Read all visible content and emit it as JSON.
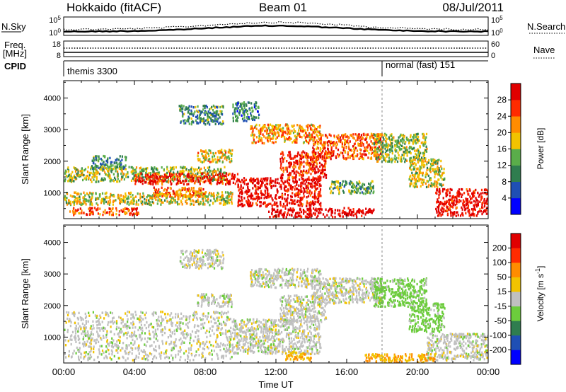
{
  "header": {
    "left_title": "Hokkaido (fitACF)",
    "center_title": "Beam 01",
    "right_title": "08/Jul/2011"
  },
  "param_panels": {
    "nsky": {
      "label": "N.Sky",
      "ticks_left": [
        "10^5",
        "10^0"
      ],
      "ticks_right": [
        "10^5",
        "10^0"
      ],
      "right_label": "N.Search"
    },
    "freq": {
      "label_line1": "Freq.",
      "label_line2": "[MHz]",
      "ticks_left": [
        "18",
        "8"
      ],
      "ticks_right": [
        "60",
        "0"
      ],
      "right_label": "Nave"
    },
    "cpid": {
      "label": "CPID",
      "modes": [
        "themis 3300",
        "normal (fast) 151"
      ]
    }
  },
  "chart_data": [
    {
      "type": "heatmap",
      "panel": "power",
      "title": "",
      "xlabel": "Time UT",
      "ylabel": "Slant Range [km]",
      "xlim": [
        0,
        24
      ],
      "ylim": [
        180,
        4550
      ],
      "x_ticks": [
        "00:00",
        "04:00",
        "08:00",
        "12:00",
        "16:00",
        "20:00",
        "00:00"
      ],
      "y_ticks": [
        1000,
        2000,
        3000,
        4000
      ],
      "colorbar": {
        "label": "Power [dB]",
        "ticks": [
          "28",
          "24",
          "20",
          "16",
          "12",
          "8",
          "4"
        ],
        "range": [
          0,
          30
        ],
        "colors": [
          "#0000ff",
          "#1f4fb4",
          "#2f7d4f",
          "#5aad4a",
          "#f2c300",
          "#ff8c00",
          "#ff2b00",
          "#e00000"
        ]
      },
      "bands": [
        {
          "t0": 0.0,
          "t1": 9.2,
          "r0": 1380,
          "r1": 1850,
          "level": 14
        },
        {
          "t0": 0.0,
          "t1": 9.5,
          "r0": 650,
          "r1": 1050,
          "level": 16
        },
        {
          "t0": 0.3,
          "t1": 4.2,
          "r0": 330,
          "r1": 560,
          "level": 24
        },
        {
          "t0": 4.0,
          "t1": 9.8,
          "r0": 1300,
          "r1": 1650,
          "level": 27
        },
        {
          "t0": 5.0,
          "t1": 8.0,
          "r0": 900,
          "r1": 1200,
          "level": 22
        },
        {
          "t0": 9.8,
          "t1": 14.5,
          "r0": 600,
          "r1": 1500,
          "level": 28
        },
        {
          "t0": 10.5,
          "t1": 14.5,
          "r0": 2600,
          "r1": 3200,
          "level": 20
        },
        {
          "t0": 12.2,
          "t1": 14.8,
          "r0": 1500,
          "r1": 2350,
          "level": 26
        },
        {
          "t0": 14.0,
          "t1": 18.0,
          "r0": 2100,
          "r1": 2900,
          "level": 23
        },
        {
          "t0": 15.0,
          "t1": 17.5,
          "r0": 1000,
          "r1": 1400,
          "level": 12
        },
        {
          "t0": 11.5,
          "t1": 17.5,
          "r0": 250,
          "r1": 550,
          "level": 30
        },
        {
          "t0": 17.5,
          "t1": 20.5,
          "r0": 2000,
          "r1": 2900,
          "level": 14
        },
        {
          "t0": 19.5,
          "t1": 21.5,
          "r0": 1200,
          "r1": 2100,
          "level": 16
        },
        {
          "t0": 21.0,
          "t1": 24.0,
          "r0": 300,
          "r1": 1150,
          "level": 28
        },
        {
          "t0": 6.5,
          "t1": 9.0,
          "r0": 3200,
          "r1": 3800,
          "level": 10
        },
        {
          "t0": 7.5,
          "t1": 9.5,
          "r0": 2000,
          "r1": 2400,
          "level": 18
        },
        {
          "t0": 1.5,
          "t1": 3.5,
          "r0": 1800,
          "r1": 2200,
          "level": 10
        },
        {
          "t0": 9.5,
          "t1": 11.0,
          "r0": 3300,
          "r1": 3900,
          "level": 9
        }
      ]
    },
    {
      "type": "heatmap",
      "panel": "velocity",
      "title": "",
      "xlabel": "Time UT",
      "ylabel": "Slant Range [km]",
      "xlim": [
        0,
        24
      ],
      "ylim": [
        180,
        4550
      ],
      "x_ticks": [
        "00:00",
        "04:00",
        "08:00",
        "12:00",
        "16:00",
        "20:00",
        "00:00"
      ],
      "y_ticks": [
        1000,
        2000,
        3000,
        4000
      ],
      "colorbar": {
        "label": "Velocity [m s^-1]",
        "ticks": [
          "200",
          "100",
          "50",
          "15",
          "-15",
          "-50",
          "-100",
          "-200"
        ],
        "range": [
          -250,
          250
        ],
        "colors": [
          "#0000ff",
          "#1f4fb4",
          "#2f7d4f",
          "#6ccc3c",
          "#c0c0c0",
          "#f2c300",
          "#ff8c00",
          "#ff2b00",
          "#e00000"
        ]
      },
      "bands": [
        {
          "t0": 0.0,
          "t1": 9.5,
          "r0": 300,
          "r1": 1850,
          "level": 0
        },
        {
          "t0": 9.5,
          "t1": 14.5,
          "r0": 500,
          "r1": 1600,
          "level": 0
        },
        {
          "t0": 10.5,
          "t1": 14.5,
          "r0": 2600,
          "r1": 3200,
          "level": 0
        },
        {
          "t0": 12.2,
          "t1": 14.8,
          "r0": 1500,
          "r1": 2350,
          "level": 0
        },
        {
          "t0": 14.0,
          "t1": 18.0,
          "r0": 2100,
          "r1": 2900,
          "level": 0
        },
        {
          "t0": 17.5,
          "t1": 20.5,
          "r0": 2000,
          "r1": 2900,
          "level": 30
        },
        {
          "t0": 19.5,
          "t1": 21.5,
          "r0": 1200,
          "r1": 2100,
          "level": 30
        },
        {
          "t0": 20.5,
          "t1": 24.0,
          "r0": 300,
          "r1": 1150,
          "level": 0
        },
        {
          "t0": 17.0,
          "t1": 21.0,
          "r0": 200,
          "r1": 500,
          "level": -50
        },
        {
          "t0": 12.5,
          "t1": 14.0,
          "r0": 300,
          "r1": 600,
          "level": -40
        },
        {
          "t0": 6.5,
          "t1": 9.0,
          "r0": 3200,
          "r1": 3800,
          "level": 0
        },
        {
          "t0": 7.5,
          "t1": 9.5,
          "r0": 2000,
          "r1": 2400,
          "level": 0
        }
      ]
    }
  ],
  "annotations": {
    "mode_change_time": 18.0
  }
}
